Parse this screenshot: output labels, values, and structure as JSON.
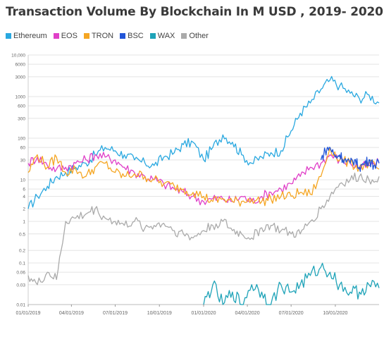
{
  "chart_data": {
    "type": "line",
    "title": "Transaction Volume By Blockchain In M USD , 2019- 2020",
    "xlabel": "",
    "ylabel": "",
    "yscale": "log",
    "ylim": [
      0.01,
      10000
    ],
    "y_ticks": [
      {
        "value": 10000,
        "label": "10,000"
      },
      {
        "value": 6000,
        "label": "6000"
      },
      {
        "value": 3000,
        "label": "3000"
      },
      {
        "value": 1000,
        "label": "1000"
      },
      {
        "value": 600,
        "label": "600"
      },
      {
        "value": 300,
        "label": "300"
      },
      {
        "value": 100,
        "label": "100"
      },
      {
        "value": 60,
        "label": "60"
      },
      {
        "value": 30,
        "label": "30"
      },
      {
        "value": 10,
        "label": "10"
      },
      {
        "value": 6,
        "label": "6"
      },
      {
        "value": 4,
        "label": "4"
      },
      {
        "value": 2,
        "label": "2"
      },
      {
        "value": 1,
        "label": "1"
      },
      {
        "value": 0.5,
        "label": "0.5"
      },
      {
        "value": 0.2,
        "label": "0.2"
      },
      {
        "value": 0.1,
        "label": "0.1"
      },
      {
        "value": 0.06,
        "label": "0.06"
      },
      {
        "value": 0.03,
        "label": "0.03"
      },
      {
        "value": 0.01,
        "label": "0.01"
      }
    ],
    "x_ticks": [
      "01/01/2019",
      "04/01/2019",
      "07/01/2019",
      "10/01/2019",
      "01/01/2020",
      "04/01/2020",
      "07/01/2020",
      "10/01/2020"
    ],
    "x_range": [
      "2019-01-01",
      "2020-12-31"
    ],
    "grid": true,
    "legend_position": "top-left",
    "series": [
      {
        "name": "Ethereum",
        "color": "#29a8e0",
        "x": [
          "2019-01-01",
          "2019-01-20",
          "2019-02-10",
          "2019-03-01",
          "2019-03-20",
          "2019-04-10",
          "2019-05-01",
          "2019-05-20",
          "2019-06-10",
          "2019-07-01",
          "2019-07-20",
          "2019-08-10",
          "2019-09-01",
          "2019-09-20",
          "2019-10-10",
          "2019-11-01",
          "2019-11-20",
          "2019-12-10",
          "2020-01-01",
          "2020-01-20",
          "2020-02-10",
          "2020-03-01",
          "2020-03-20",
          "2020-04-10",
          "2020-05-01",
          "2020-05-20",
          "2020-06-10",
          "2020-07-01",
          "2020-07-20",
          "2020-08-10",
          "2020-09-01",
          "2020-09-20",
          "2020-10-10",
          "2020-11-01",
          "2020-11-20",
          "2020-12-10",
          "2020-12-31"
        ],
        "values": [
          2,
          4,
          7,
          12,
          15,
          20,
          25,
          40,
          60,
          50,
          40,
          30,
          25,
          22,
          35,
          45,
          70,
          80,
          30,
          60,
          120,
          80,
          40,
          25,
          35,
          45,
          50,
          150,
          400,
          700,
          1500,
          2500,
          1800,
          1200,
          900,
          1100,
          700
        ]
      },
      {
        "name": "EOS",
        "color": "#e040c8",
        "x": [
          "2019-01-01",
          "2019-01-20",
          "2019-02-10",
          "2019-03-01",
          "2019-03-20",
          "2019-04-10",
          "2019-05-01",
          "2019-05-20",
          "2019-06-10",
          "2019-07-01",
          "2019-07-20",
          "2019-08-10",
          "2019-09-01",
          "2019-09-20",
          "2019-10-10",
          "2019-11-01",
          "2019-11-20",
          "2019-12-10",
          "2020-01-01",
          "2020-01-20",
          "2020-02-10",
          "2020-03-01",
          "2020-03-20",
          "2020-04-10",
          "2020-05-01",
          "2020-05-20",
          "2020-06-10",
          "2020-07-01",
          "2020-07-20",
          "2020-08-10",
          "2020-09-01",
          "2020-09-20",
          "2020-10-10",
          "2020-11-01",
          "2020-11-20",
          "2020-12-10",
          "2020-12-31"
        ],
        "values": [
          25,
          35,
          22,
          18,
          20,
          25,
          30,
          40,
          35,
          30,
          20,
          15,
          12,
          10,
          8,
          6,
          5,
          4,
          3,
          3.5,
          3.5,
          3,
          4,
          3,
          4,
          5,
          6,
          8,
          12,
          20,
          25,
          40,
          30,
          25,
          20,
          22,
          25
        ]
      },
      {
        "name": "TRON",
        "color": "#f5a623",
        "x": [
          "2019-01-01",
          "2019-01-20",
          "2019-02-10",
          "2019-03-01",
          "2019-03-20",
          "2019-04-10",
          "2019-05-01",
          "2019-05-20",
          "2019-06-10",
          "2019-07-01",
          "2019-07-20",
          "2019-08-10",
          "2019-09-01",
          "2019-09-20",
          "2019-10-10",
          "2019-11-01",
          "2019-11-20",
          "2019-12-10",
          "2020-01-01",
          "2020-01-20",
          "2020-02-10",
          "2020-03-01",
          "2020-03-20",
          "2020-04-10",
          "2020-05-01",
          "2020-05-20",
          "2020-06-10",
          "2020-07-01",
          "2020-07-20",
          "2020-08-10",
          "2020-09-01",
          "2020-09-20",
          "2020-10-10",
          "2020-11-01",
          "2020-11-20",
          "2020-12-10",
          "2020-12-31"
        ],
        "values": [
          15,
          40,
          20,
          35,
          15,
          18,
          12,
          20,
          25,
          15,
          12,
          14,
          12,
          10,
          8,
          7,
          6,
          5,
          4,
          3,
          3.5,
          3,
          3,
          3.5,
          3,
          3.5,
          4,
          4,
          5,
          4.5,
          12,
          60,
          30,
          25,
          20,
          25,
          18
        ]
      },
      {
        "name": "BSC",
        "color": "#2255d8",
        "x": [
          "2020-09-01",
          "2020-09-10",
          "2020-09-20",
          "2020-10-01",
          "2020-10-10",
          "2020-10-20",
          "2020-11-01",
          "2020-11-10",
          "2020-11-20",
          "2020-12-01",
          "2020-12-10",
          "2020-12-20",
          "2020-12-31"
        ],
        "values": [
          30,
          50,
          60,
          35,
          40,
          30,
          25,
          30,
          20,
          25,
          30,
          22,
          25
        ]
      },
      {
        "name": "WAX",
        "color": "#1ea3b8",
        "x": [
          "2020-01-01",
          "2020-01-20",
          "2020-02-10",
          "2020-03-01",
          "2020-03-20",
          "2020-04-10",
          "2020-05-01",
          "2020-05-20",
          "2020-06-10",
          "2020-07-01",
          "2020-07-20",
          "2020-08-10",
          "2020-09-01",
          "2020-09-20",
          "2020-10-10",
          "2020-11-01",
          "2020-11-20",
          "2020-12-10",
          "2020-12-31"
        ],
        "values": [
          0.01,
          0.03,
          0.01,
          0.02,
          0.01,
          0.03,
          0.02,
          0.01,
          0.03,
          0.02,
          0.03,
          0.05,
          0.08,
          0.06,
          0.03,
          0.02,
          0.02,
          0.03,
          0.025
        ]
      },
      {
        "name": "Other",
        "color": "#aaaaaa",
        "x": [
          "2019-01-01",
          "2019-01-20",
          "2019-02-10",
          "2019-03-01",
          "2019-03-20",
          "2019-04-10",
          "2019-05-01",
          "2019-05-20",
          "2019-06-10",
          "2019-07-01",
          "2019-07-20",
          "2019-08-10",
          "2019-09-01",
          "2019-09-20",
          "2019-10-10",
          "2019-11-01",
          "2019-11-20",
          "2019-12-10",
          "2020-01-01",
          "2020-01-20",
          "2020-02-10",
          "2020-03-01",
          "2020-03-20",
          "2020-04-10",
          "2020-05-01",
          "2020-05-20",
          "2020-06-10",
          "2020-07-01",
          "2020-07-20",
          "2020-08-10",
          "2020-09-01",
          "2020-09-20",
          "2020-10-10",
          "2020-11-01",
          "2020-11-20",
          "2020-12-10",
          "2020-12-31"
        ],
        "values": [
          0.05,
          0.03,
          0.06,
          0.04,
          1,
          1.2,
          1.5,
          2,
          1.2,
          1,
          0.8,
          1,
          0.7,
          0.8,
          0.9,
          0.6,
          0.5,
          0.4,
          0.6,
          0.8,
          1,
          0.6,
          0.5,
          0.4,
          0.7,
          0.8,
          0.6,
          0.5,
          0.5,
          1,
          2,
          4,
          8,
          10,
          12,
          10,
          12
        ]
      }
    ]
  }
}
